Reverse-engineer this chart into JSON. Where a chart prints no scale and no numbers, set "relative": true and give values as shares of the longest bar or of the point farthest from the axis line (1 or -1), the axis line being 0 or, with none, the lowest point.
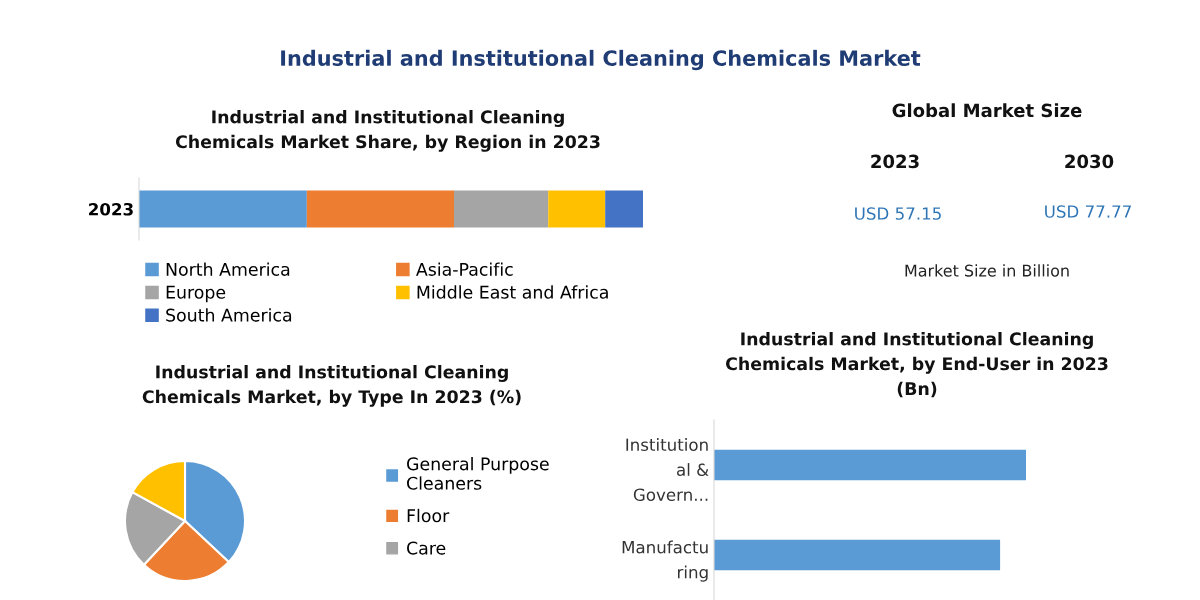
{
  "chart_data": [
    {
      "type": "other",
      "title": "Industrial and Institutional Cleaning Chemicals Market"
    },
    {
      "type": "bar",
      "title": "Industrial and Institutional Cleaning\nChemicals Market Share, by Region in 2023",
      "orientation": "horizontal",
      "stacked": true,
      "relative": true,
      "legend": "bottom",
      "categories": [
        "2023"
      ],
      "series": [
        {
          "name": "North America",
          "color": "#5b9bd5",
          "values": [
            0.333
          ]
        },
        {
          "name": "Asia-Pacific",
          "color": "#ed7d31",
          "values": [
            0.292
          ]
        },
        {
          "name": "Europe",
          "color": "#a5a5a5",
          "values": [
            0.187
          ]
        },
        {
          "name": "Middle East and Africa",
          "color": "#ffc000",
          "values": [
            0.113
          ]
        },
        {
          "name": "South America",
          "color": "#4472c4",
          "values": [
            0.075
          ]
        }
      ]
    },
    {
      "type": "other",
      "title": "Global Market Size",
      "annotations": [
        "2023",
        "2030",
        "USD 57.15",
        "USD 77.77",
        "Market Size in Billion"
      ]
    },
    {
      "type": "pie",
      "title": "Industrial and Institutional Cleaning\nChemicals Market, by Type In 2023 (%)",
      "legend": "right",
      "categories": [
        "General Purpose\nCleaners",
        "Floor",
        "Care",
        null
      ],
      "values": [
        37,
        25,
        21,
        17
      ],
      "colors": [
        "#5b9bd5",
        "#ed7d31",
        "#a5a5a5",
        "#ffc000"
      ]
    },
    {
      "type": "bar",
      "title": "Industrial and Institutional Cleaning\nChemicals Market, by End-User in 2023\n(Bn)",
      "orientation": "horizontal",
      "relative": true,
      "categories": [
        "Institution\nal &\nGovern...",
        "Manufactu\nring"
      ],
      "values": [
        1,
        0.917
      ],
      "color": "#5b9bd5"
    }
  ]
}
